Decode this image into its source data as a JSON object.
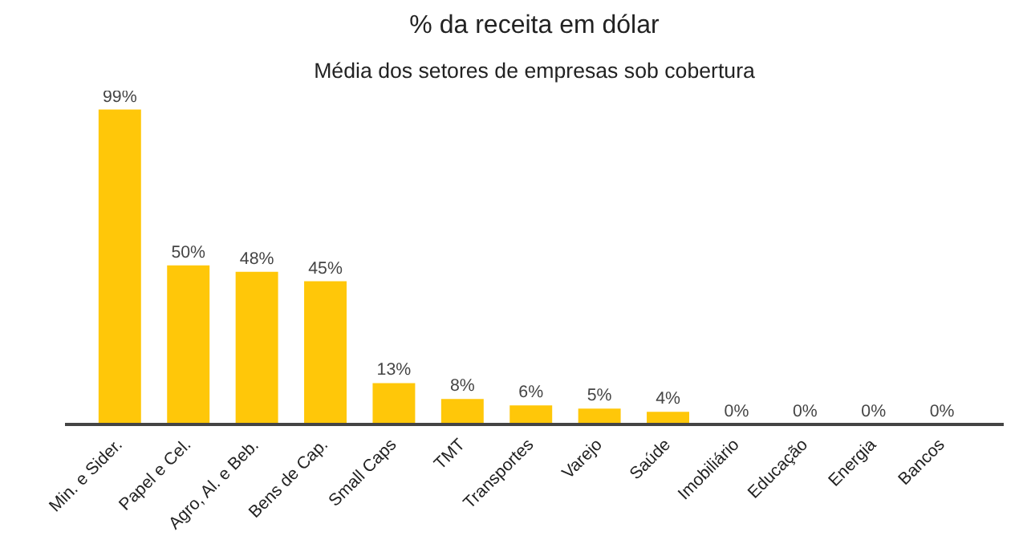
{
  "chart_data": {
    "type": "bar",
    "title": "% da receita em dólar",
    "subtitle": "Média dos setores de empresas sob cobertura",
    "categories": [
      "Min. e Sider.",
      "Papel e Cel.",
      "Agro, Al. e Beb.",
      "Bens de Cap.",
      "Small Caps",
      "TMT",
      "Transportes",
      "Varejo",
      "Saúde",
      "Imobiliário",
      "Educação",
      "Energia",
      "Bancos"
    ],
    "values": [
      99,
      50,
      48,
      45,
      13,
      8,
      6,
      5,
      4,
      0,
      0,
      0,
      0
    ],
    "value_labels": [
      "99%",
      "50%",
      "48%",
      "45%",
      "13%",
      "8%",
      "6%",
      "5%",
      "4%",
      "0%",
      "0%",
      "0%",
      "0%"
    ],
    "color": "#ffc709",
    "grid": false
  }
}
